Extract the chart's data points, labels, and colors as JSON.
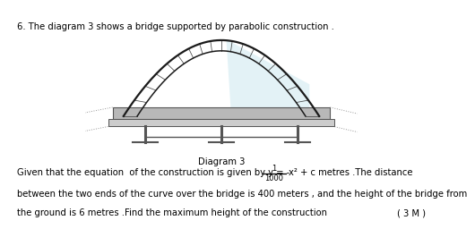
{
  "title_text": "6. The diagram 3 shows a bridge supported by parabolic construction .",
  "diagram_label": "Diagram 3",
  "line1_left": "Given that the equation  of the construction is given by y = -",
  "fraction_num": "1",
  "fraction_den": "1000",
  "line1_right": "x² + c metres .The distance",
  "line2": "between the two ends of the curve over the bridge is 400 meters , and the height of the bridge from",
  "line3": "the ground is 6 metres .Find the maximum height of the construction",
  "marks": "( 3 M )",
  "bg_color": "#ffffff",
  "text_color": "#000000",
  "arch_color": "#1a1a1a",
  "deck_color_top": "#b8b8b8",
  "deck_color_bot": "#cccccc",
  "leg_color": "#555555",
  "shade_color": "#cce8f0"
}
